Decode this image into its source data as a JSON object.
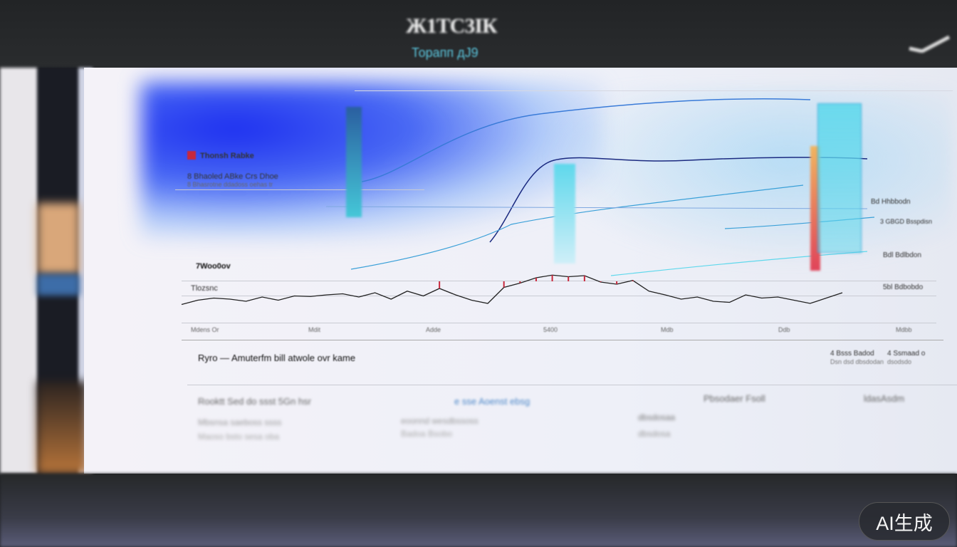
{
  "header": {
    "title": "Ж1ТС3ІК",
    "subtitle": "Торапп дЈ9"
  },
  "upper_panel": {
    "legend_label": "Thonsh Rabke",
    "info_line_1": "8 Bhaoled ABke Crs Dhoe",
    "info_line_2": "8 Bhasrotne ddadoss oehas tr",
    "right_labels": [
      "Bd Hhbbodn",
      "3 GBGD  Bsspdisn",
      "Bdl Bdlbdon",
      "5bl Bdbobdo"
    ]
  },
  "chart_data": {
    "type": "line",
    "title": "7Woo0ov",
    "ylabel": "Tlozsnc",
    "xlabel": "",
    "x_tick_labels": [
      "Mdens Or",
      "Mdit",
      "Adde",
      "5400",
      "Mdb",
      "Ddb",
      "Mdbb"
    ],
    "caption": "Ryro — Amuterfm bill atwole ovr kame",
    "series": [
      {
        "values": [
          30,
          38,
          42,
          40,
          36,
          44,
          38,
          46,
          45,
          48,
          50,
          44,
          52,
          40,
          55,
          46,
          60,
          48,
          38,
          32,
          62,
          70,
          80,
          85,
          82,
          84,
          72,
          68,
          75,
          55,
          48,
          40,
          44,
          36,
          34,
          48,
          42,
          44,
          38,
          32,
          42,
          52
        ]
      }
    ],
    "highlight_color": "#c8283c",
    "line_color": "#222222"
  },
  "table": {
    "header": [
      "Rooktt  Sed  do  ssst  5Gn  hsr",
      "e  sse  Aoenst  ebsg",
      "Pbsodaer  Fsoll",
      "ldasAsdm"
    ],
    "rows": [
      [
        "Mbsnsa  saeboss  ssss",
        "eoonnd  wesdbssoss",
        "dbsdosaa"
      ],
      [
        "Maoso  bsto  sesa  oba",
        "Badoa  Bsobo",
        "dbsdosa"
      ]
    ],
    "right_meta": [
      "4 Bsss Badod",
      "4 Ssmaad o",
      "Dsn dsd  dbsdodan",
      "dsodsdo"
    ]
  },
  "badge": {
    "label": "AI生成"
  },
  "colors": {
    "accent_blue": "#1d2ff0",
    "cyan": "#5fd8ec",
    "red": "#e0445a",
    "orange": "#f0b560"
  }
}
